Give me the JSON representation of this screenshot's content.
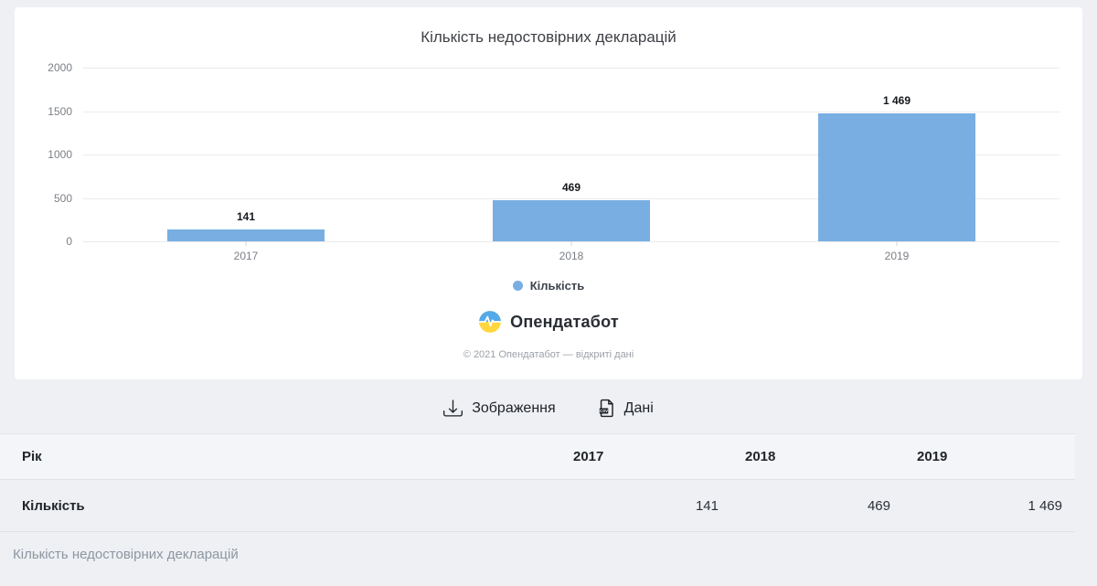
{
  "chart_card": {
    "title": "Кількість недостовірних декларацій",
    "legend": {
      "label": "Кількість"
    },
    "brand": {
      "name": "Опендатабот"
    },
    "copyright": "© 2021 Опендатабот — відкриті дані"
  },
  "chart_data": {
    "type": "bar",
    "title": "Кількість недостовірних декларацій",
    "categories": [
      "2017",
      "2018",
      "2019"
    ],
    "series": [
      {
        "name": "Кількість",
        "values": [
          141,
          469,
          1469
        ]
      }
    ],
    "value_labels": [
      "141",
      "469",
      "1 469"
    ],
    "bar_color": "#79aee3",
    "ylim": [
      0,
      2000
    ],
    "yticks": [
      0,
      500,
      1000,
      1500,
      2000
    ],
    "grid": true,
    "legend_position": "bottom"
  },
  "toolbar": {
    "image_button": "Зображення",
    "data_button": "Дані"
  },
  "table": {
    "header": [
      "Рік",
      "2017",
      "2018",
      "2019"
    ],
    "rows": [
      [
        "Кількість",
        "141",
        "469",
        "1 469"
      ]
    ]
  },
  "caption": "Кількість недостовірних декларацій",
  "colors": {
    "page_background": "#eef0f3",
    "bar": "#79aee3",
    "logo_blue": "#54a9ea",
    "logo_yellow": "#ffd63e"
  }
}
